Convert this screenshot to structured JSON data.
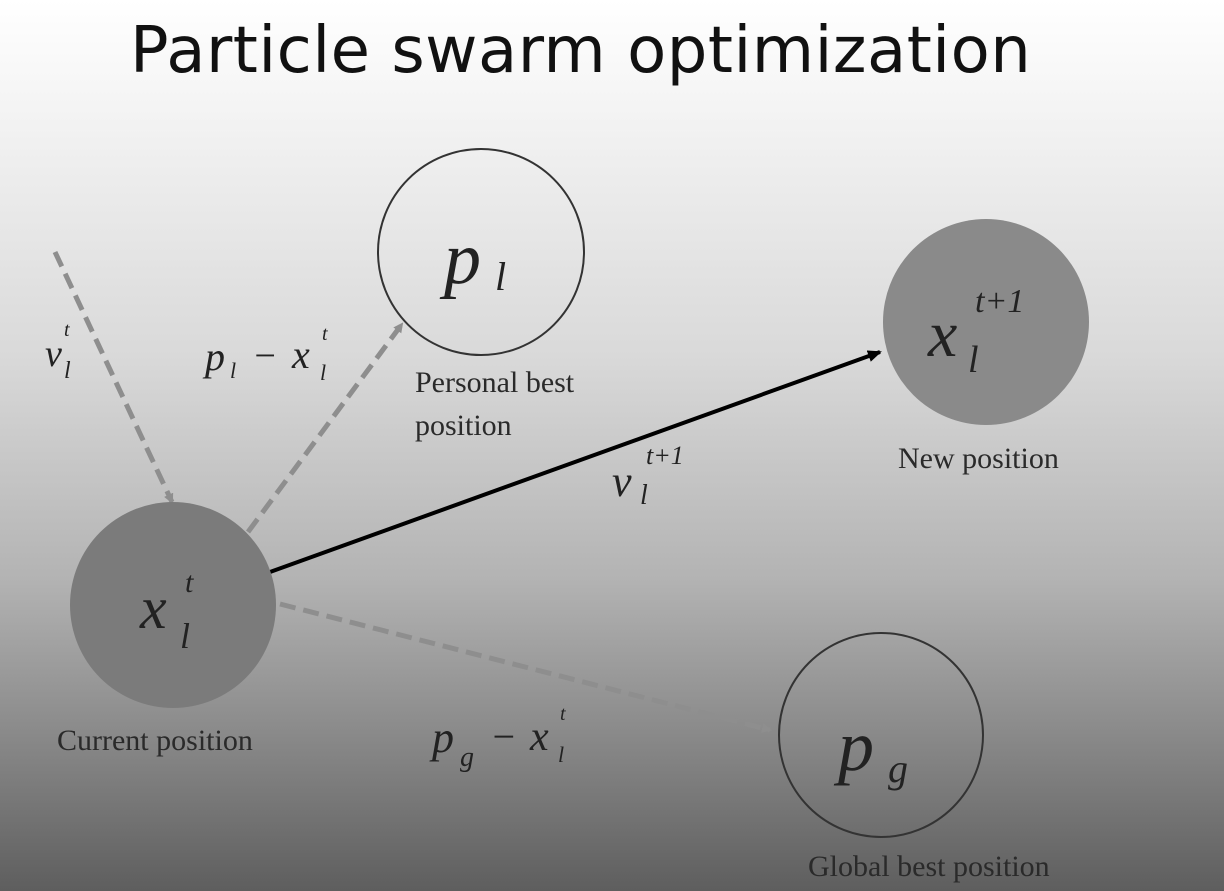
{
  "title": "Particle swarm optimization",
  "nodes": {
    "current": {
      "base": "x",
      "sup": "t",
      "sub": "l",
      "caption": "Current position"
    },
    "personal_best": {
      "base": "p",
      "sub": "l",
      "caption_line1": "Personal best",
      "caption_line2": "position"
    },
    "new": {
      "base": "x",
      "sup": "t+1",
      "sub": "l",
      "caption": "New position"
    },
    "global_best": {
      "base": "p",
      "sub": "g",
      "caption": "Global best position"
    }
  },
  "vectors": {
    "velocity_current": {
      "base": "v",
      "sup": "t",
      "sub": "l"
    },
    "toward_personal": {
      "p": "p",
      "p_sub": "l",
      "minus": "−",
      "x": "x",
      "x_sup": "t",
      "x_sub": "l"
    },
    "velocity_new": {
      "base": "v",
      "sup": "t+1",
      "sub": "l"
    },
    "toward_global": {
      "p": "p",
      "p_sub": "g",
      "minus": "−",
      "x": "x",
      "x_sup": "t",
      "x_sub": "l"
    }
  },
  "colors": {
    "filled_node": "#8a8a8a",
    "current_node": "#7b7b7b",
    "open_node_stroke": "#333333",
    "dashed_arrow": "#8e8e8e",
    "solid_arrow": "#000000"
  }
}
